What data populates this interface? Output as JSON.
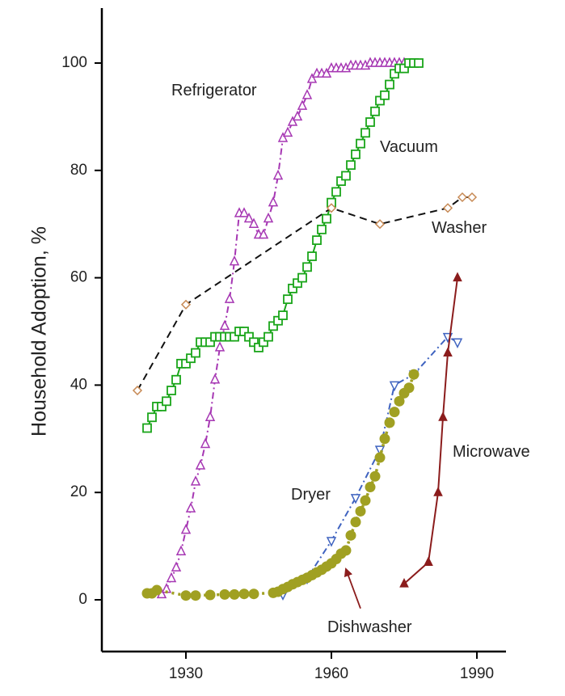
{
  "chart_data": {
    "type": "line",
    "ylabel": "Household Adoption, %",
    "xlabel": "",
    "xlim": [
      1918,
      1995
    ],
    "ylim": [
      -10,
      110
    ],
    "xticks": [
      1930,
      1960,
      1990
    ],
    "yticks": [
      0,
      20,
      40,
      60,
      80,
      100
    ],
    "grid": false,
    "series": [
      {
        "name": "Refrigerator",
        "color": "#a637b3",
        "marker": "triangle-up",
        "line_style": "dash-dot",
        "x": [
          1925,
          1926,
          1927,
          1928,
          1929,
          1930,
          1931,
          1932,
          1933,
          1934,
          1935,
          1936,
          1937,
          1938,
          1939,
          1940,
          1941,
          1942,
          1943,
          1944,
          1945,
          1946,
          1947,
          1948,
          1949,
          1950,
          1951,
          1952,
          1953,
          1954,
          1955,
          1956,
          1957,
          1958,
          1959,
          1960,
          1961,
          1962,
          1963,
          1964,
          1965,
          1966,
          1967,
          1968,
          1969,
          1970,
          1971,
          1972,
          1973,
          1974,
          1975
        ],
        "values": [
          1,
          2,
          4,
          6,
          9,
          13,
          17,
          22,
          25,
          29,
          34,
          41,
          47,
          51,
          56,
          63,
          72,
          72,
          71,
          70,
          68,
          68,
          71,
          74,
          79,
          86,
          87,
          89,
          90,
          92,
          94,
          97,
          98,
          98,
          98,
          99,
          99,
          99,
          99,
          99.5,
          99.5,
          99.5,
          99.5,
          100,
          100,
          100,
          100,
          100,
          100,
          100,
          100
        ]
      },
      {
        "name": "Vacuum",
        "color": "#1aa51a",
        "marker": "square",
        "line_style": "solid",
        "x": [
          1922,
          1923,
          1924,
          1925,
          1926,
          1927,
          1928,
          1929,
          1930,
          1931,
          1932,
          1933,
          1934,
          1935,
          1936,
          1937,
          1938,
          1939,
          1940,
          1941,
          1942,
          1943,
          1944,
          1945,
          1946,
          1947,
          1948,
          1949,
          1950,
          1951,
          1952,
          1953,
          1954,
          1955,
          1956,
          1957,
          1958,
          1959,
          1960,
          1961,
          1962,
          1963,
          1964,
          1965,
          1966,
          1967,
          1968,
          1969,
          1970,
          1971,
          1972,
          1973,
          1974,
          1975,
          1976,
          1977,
          1978
        ],
        "values": [
          32,
          34,
          36,
          36,
          37,
          39,
          41,
          44,
          44,
          45,
          46,
          48,
          48,
          48,
          49,
          49,
          49,
          49,
          49,
          50,
          50,
          49,
          48,
          47,
          48,
          49,
          51,
          52,
          53,
          56,
          58,
          59,
          60,
          62,
          64,
          67,
          69,
          71,
          74,
          76,
          78,
          79,
          81,
          83,
          85,
          87,
          89,
          91,
          93,
          94,
          96,
          98,
          99,
          99,
          100,
          100,
          100
        ]
      },
      {
        "name": "Washer",
        "color": "#c78a55",
        "marker": "diamond",
        "line_style": "dashed",
        "line_color": "#111111",
        "x": [
          1920,
          1930,
          1960,
          1970,
          1984,
          1987,
          1989
        ],
        "values": [
          39,
          55,
          73,
          70,
          73,
          75,
          75
        ]
      },
      {
        "name": "Dryer",
        "color": "#3f63c0",
        "marker": "triangle-down",
        "line_style": "dash-dot",
        "x": [
          1950,
          1955,
          1960,
          1965,
          1970,
          1973,
          1977,
          1984,
          1986
        ],
        "values": [
          1,
          4,
          11,
          19,
          28,
          40,
          42,
          49,
          48
        ]
      },
      {
        "name": "Dishwasher",
        "color": "#a0a022",
        "marker": "circle",
        "line_style": "dotted",
        "x": [
          1922,
          1923,
          1924,
          1930,
          1932,
          1935,
          1938,
          1940,
          1942,
          1944,
          1948,
          1949,
          1950,
          1951,
          1952,
          1953,
          1954,
          1955,
          1956,
          1957,
          1958,
          1959,
          1960,
          1961,
          1962,
          1963,
          1964,
          1965,
          1966,
          1967,
          1968,
          1969,
          1970,
          1971,
          1972,
          1973,
          1974,
          1975,
          1976,
          1977
        ],
        "values": [
          1.2,
          1.2,
          1.8,
          0.8,
          0.8,
          0.9,
          1.0,
          1.0,
          1.1,
          1.1,
          1.3,
          1.5,
          2.0,
          2.4,
          2.9,
          3.3,
          3.7,
          4.1,
          4.6,
          5.1,
          5.6,
          6.2,
          6.8,
          7.6,
          8.6,
          9.2,
          12,
          14.5,
          16.5,
          18.5,
          21,
          23,
          26.5,
          30,
          33,
          35,
          37,
          38.5,
          39.5,
          42
        ]
      },
      {
        "name": "Microwave",
        "color": "#8b1c1c",
        "marker": "triangle-up-filled",
        "line_style": "solid",
        "x": [
          1975,
          1980,
          1982,
          1983,
          1984,
          1986
        ],
        "values": [
          3,
          7,
          20,
          34,
          46,
          60
        ]
      }
    ],
    "annotations": [
      {
        "text": "Dishwasher",
        "arrow_to": [
          1963,
          6
        ],
        "arrow_from": [
          1966,
          -1
        ],
        "color": "#8b1c1c"
      }
    ]
  }
}
